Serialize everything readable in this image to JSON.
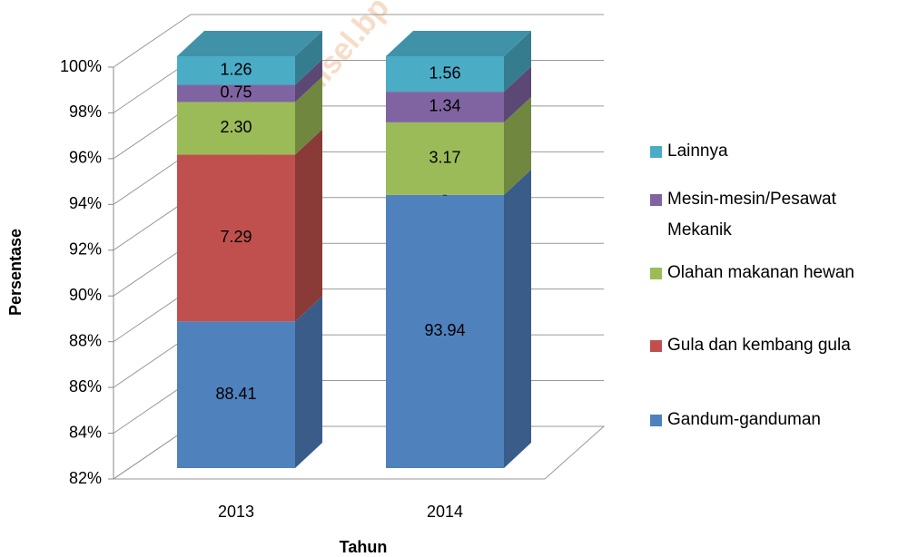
{
  "chart_data": {
    "type": "bar3d_stacked",
    "watermark": "http://sulsel.bp",
    "xlabel": "Tahun",
    "ylabel": "Persentase",
    "categories": [
      "2013",
      "2014"
    ],
    "series": [
      {
        "name": "Gandum-ganduman",
        "color": "#4f81bd",
        "values": [
          88.41,
          93.94
        ]
      },
      {
        "name": "Gula dan kembang gula",
        "color": "#c0504d",
        "values": [
          7.29,
          0
        ],
        "value_labels": [
          "7.29",
          "-"
        ]
      },
      {
        "name": "Olahan makanan hewan",
        "color": "#9bbb59",
        "values": [
          2.3,
          3.17
        ],
        "value_labels": [
          "2.30",
          "3.17"
        ]
      },
      {
        "name": "Mesin-mesin/Pesawat Mekanik",
        "color": "#8064a2",
        "values": [
          0.75,
          1.34
        ]
      },
      {
        "name": "Lainnya",
        "color": "#4bacc6",
        "values": [
          1.26,
          1.56
        ]
      }
    ],
    "ylim": [
      82,
      100
    ],
    "yticks": [
      {
        "value": 82,
        "label": "82%"
      },
      {
        "value": 84,
        "label": "84%"
      },
      {
        "value": 86,
        "label": "86%"
      },
      {
        "value": 88,
        "label": "88%"
      },
      {
        "value": 90,
        "label": "90%"
      },
      {
        "value": 92,
        "label": "92%"
      },
      {
        "value": 94,
        "label": "94%"
      },
      {
        "value": 96,
        "label": "96%"
      },
      {
        "value": 98,
        "label": "98%"
      },
      {
        "value": 100,
        "label": "100%"
      }
    ],
    "grid": true
  }
}
